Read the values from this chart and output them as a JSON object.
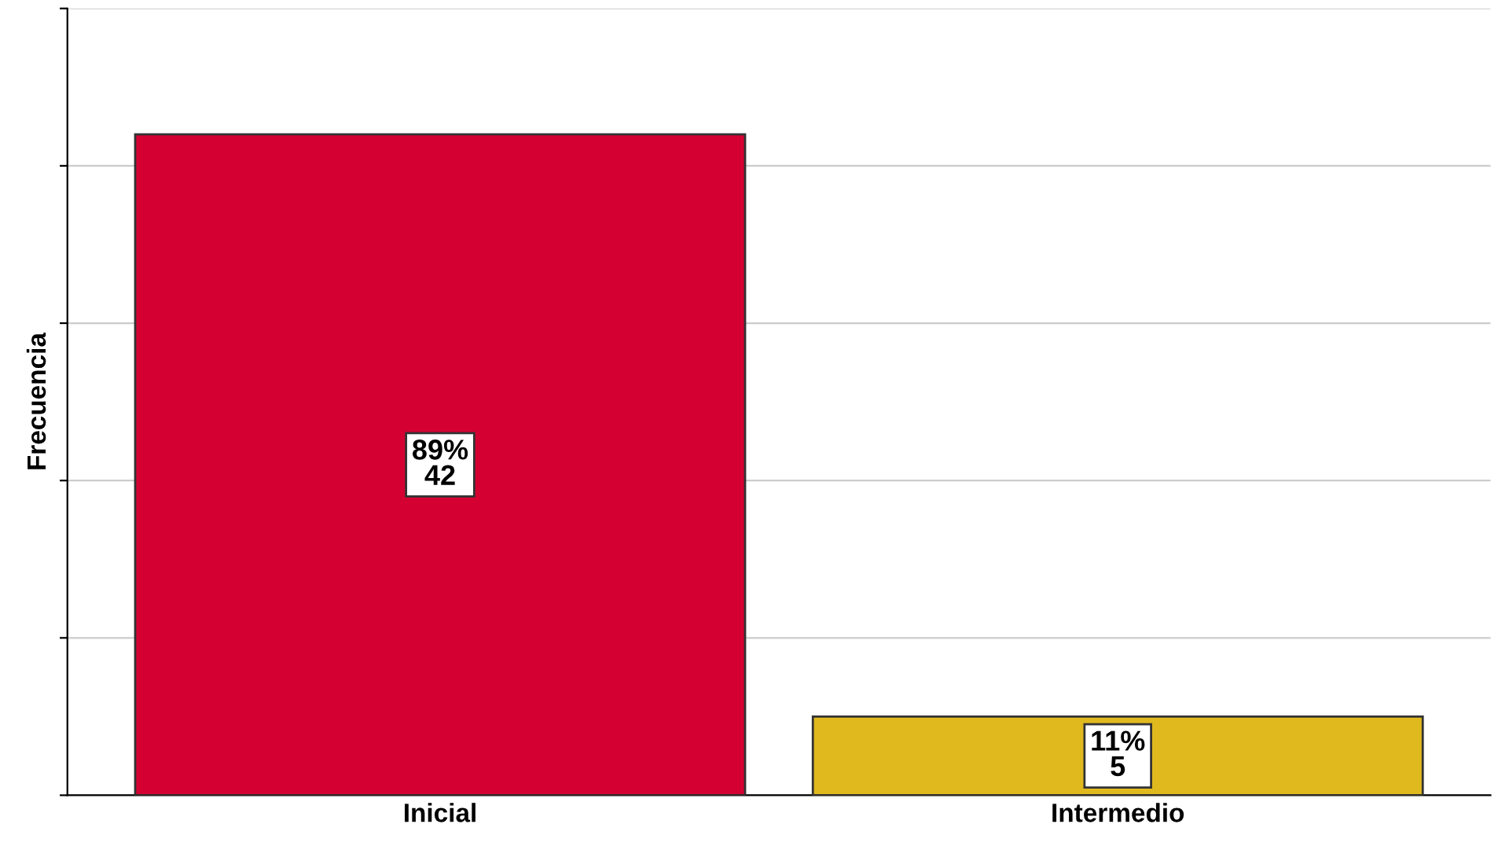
{
  "chart_data": {
    "type": "bar",
    "ylabel": "Frecuencia",
    "categories": [
      "Inicial",
      "Intermedio"
    ],
    "values": [
      42,
      5
    ],
    "colors": [
      "#d50032",
      "#e0b91e"
    ],
    "value_labels": [
      "89%\n42",
      "11%\n5"
    ],
    "ylim": [
      0,
      50
    ],
    "yticks": [
      {
        "value": 0,
        "label": null
      },
      {
        "value": 10,
        "label": null
      },
      {
        "value": 20,
        "label": null
      },
      {
        "value": 30,
        "label": null
      },
      {
        "value": 40,
        "label": null
      },
      {
        "value": 50,
        "label": null
      }
    ],
    "tick_labels": "x",
    "grid": "y",
    "legend": false
  }
}
